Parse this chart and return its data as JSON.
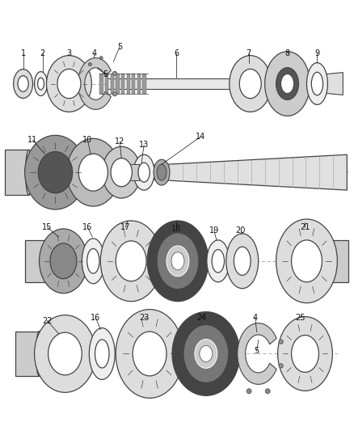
{
  "bg_color": "#ffffff",
  "line_color": "#444444",
  "fig_width": 4.38,
  "fig_height": 5.33,
  "dpi": 100,
  "label_fontsize": 7.0,
  "label_color": "#111111"
}
